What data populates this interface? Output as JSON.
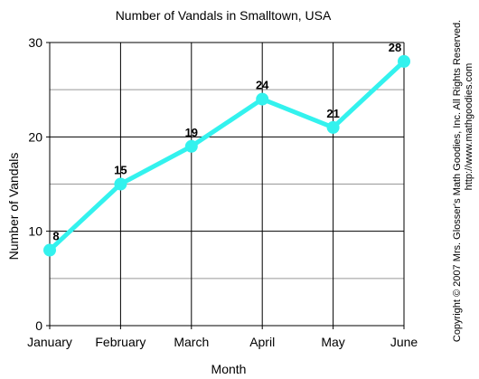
{
  "chart_data": {
    "type": "line",
    "title": "Number of Vandals in Smalltown, USA",
    "xlabel": "Month",
    "ylabel": "Number of Vandals",
    "categories": [
      "January",
      "February",
      "March",
      "April",
      "May",
      "June"
    ],
    "values": [
      8,
      15,
      19,
      24,
      21,
      28
    ],
    "ylim": [
      0,
      30
    ],
    "yticks": [
      0,
      10,
      20,
      30
    ],
    "minor_gridlines": [
      5,
      15,
      25
    ],
    "grid": true,
    "data_labels": true,
    "line_color": "#33F2EE",
    "grid_color": "#000000",
    "minor_grid_color": "#999999"
  },
  "copyright": {
    "line1": "Copyright © 2007 Mrs. Glosser's Math Goodies, Inc. All Rights Reserved.",
    "line2": "http://www.mathgoodies.com"
  }
}
